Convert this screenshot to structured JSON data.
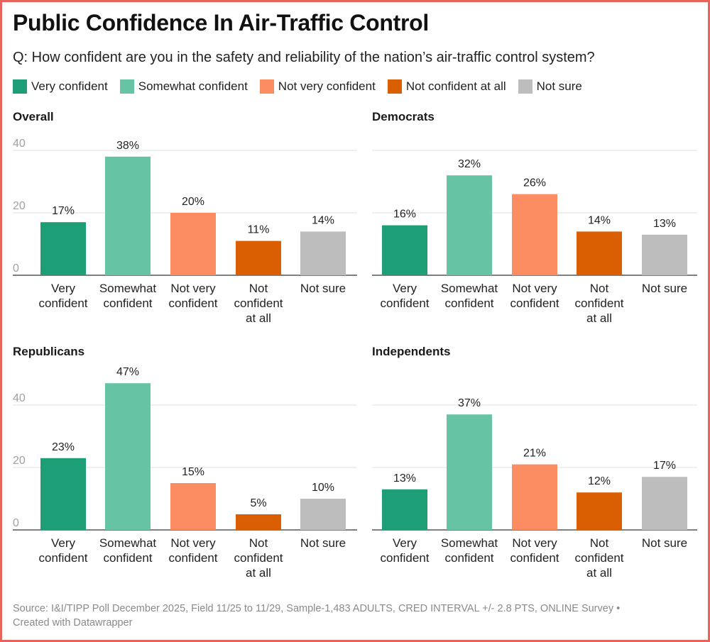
{
  "title": "Public Confidence In Air-Traffic Control",
  "subtitle": "Q: How confident are you in the safety and reliability of the nation’s air-traffic control system?",
  "legend": [
    {
      "label": "Very confident",
      "color": "#1e9e77"
    },
    {
      "label": "Somewhat confident",
      "color": "#66c4a4"
    },
    {
      "label": "Not very confident",
      "color": "#fc8d62"
    },
    {
      "label": "Not confident at all",
      "color": "#d95f02"
    },
    {
      "label": "Not sure",
      "color": "#bdbdbd"
    }
  ],
  "chart_data": [
    {
      "type": "bar",
      "title": "Overall",
      "categories": [
        [
          "Very",
          "confident"
        ],
        [
          "Somewhat",
          "confident"
        ],
        [
          "Not very",
          "confident"
        ],
        [
          "Not",
          "confident",
          "at all"
        ],
        [
          "Not sure"
        ]
      ],
      "values": [
        17,
        38,
        20,
        11,
        14
      ],
      "data_labels": [
        "17%",
        "38%",
        "20%",
        "11%",
        "14%"
      ],
      "yticks": [
        "0",
        "20",
        "40"
      ],
      "ylim": [
        0,
        40
      ]
    },
    {
      "type": "bar",
      "title": "Democrats",
      "categories": [
        [
          "Very",
          "confident"
        ],
        [
          "Somewhat",
          "confident"
        ],
        [
          "Not very",
          "confident"
        ],
        [
          "Not",
          "confident",
          "at all"
        ],
        [
          "Not sure"
        ]
      ],
      "values": [
        16,
        32,
        26,
        14,
        13
      ],
      "data_labels": [
        "16%",
        "32%",
        "26%",
        "14%",
        "13%"
      ],
      "yticks": [],
      "ylim": [
        0,
        40
      ]
    },
    {
      "type": "bar",
      "title": "Republicans",
      "categories": [
        [
          "Very",
          "confident"
        ],
        [
          "Somewhat",
          "confident"
        ],
        [
          "Not very",
          "confident"
        ],
        [
          "Not",
          "confident",
          "at all"
        ],
        [
          "Not sure"
        ]
      ],
      "values": [
        23,
        47,
        15,
        5,
        10
      ],
      "data_labels": [
        "23%",
        "47%",
        "15%",
        "5%",
        "10%"
      ],
      "yticks": [
        "0",
        "20",
        "40"
      ],
      "ylim": [
        0,
        40
      ]
    },
    {
      "type": "bar",
      "title": "Independents",
      "categories": [
        [
          "Very",
          "confident"
        ],
        [
          "Somewhat",
          "confident"
        ],
        [
          "Not very",
          "confident"
        ],
        [
          "Not",
          "confident",
          "at all"
        ],
        [
          "Not sure"
        ]
      ],
      "values": [
        13,
        37,
        21,
        12,
        17
      ],
      "data_labels": [
        "13%",
        "37%",
        "21%",
        "12%",
        "17%"
      ],
      "yticks": [],
      "ylim": [
        0,
        40
      ]
    }
  ],
  "source_line1": "Source: I&I/TIPP Poll December 2025, Field 11/25 to 11/29, Sample-1,483 ADULTS, CRED INTERVAL +/- 2.8 PTS, ONLINE Survey •",
  "source_line2": "Created with Datawrapper"
}
